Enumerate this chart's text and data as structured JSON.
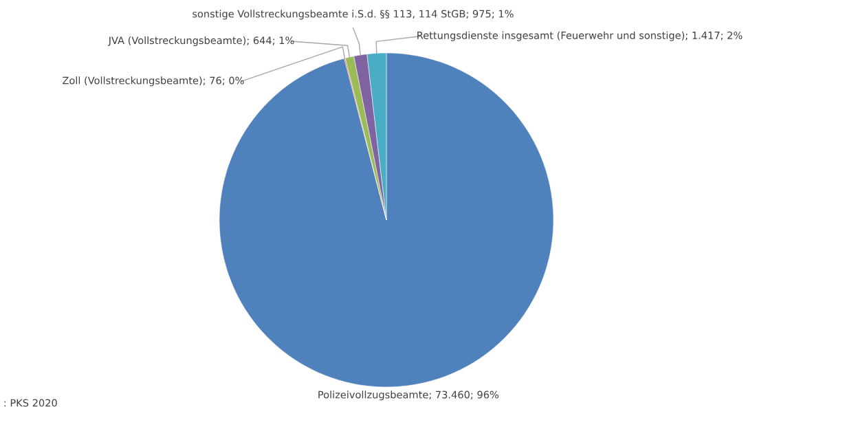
{
  "chart_data": {
    "type": "pie",
    "categories": [
      "Polizeivollzugsbeamte",
      "Zoll (Vollstreckungsbeamte)",
      "JVA (Vollstreckungsbeamte)",
      "sonstige Vollstreckungsbeamte i.S.d. §§ 113, 114 StGB",
      "Rettungsdienste insgesamt (Feuerwehr und sonstige)"
    ],
    "values": [
      73460,
      76,
      644,
      975,
      1417
    ],
    "colors": [
      "#4f81bd",
      "#c0504d",
      "#9bbb59",
      "#8064a2",
      "#4bacc6"
    ],
    "value_labels": [
      "73.460; 96%",
      "76; 0%",
      "644; 1%",
      "975; 1%",
      "1.417; 2%"
    ],
    "annotations": [
      ": PKS 2020"
    ]
  }
}
